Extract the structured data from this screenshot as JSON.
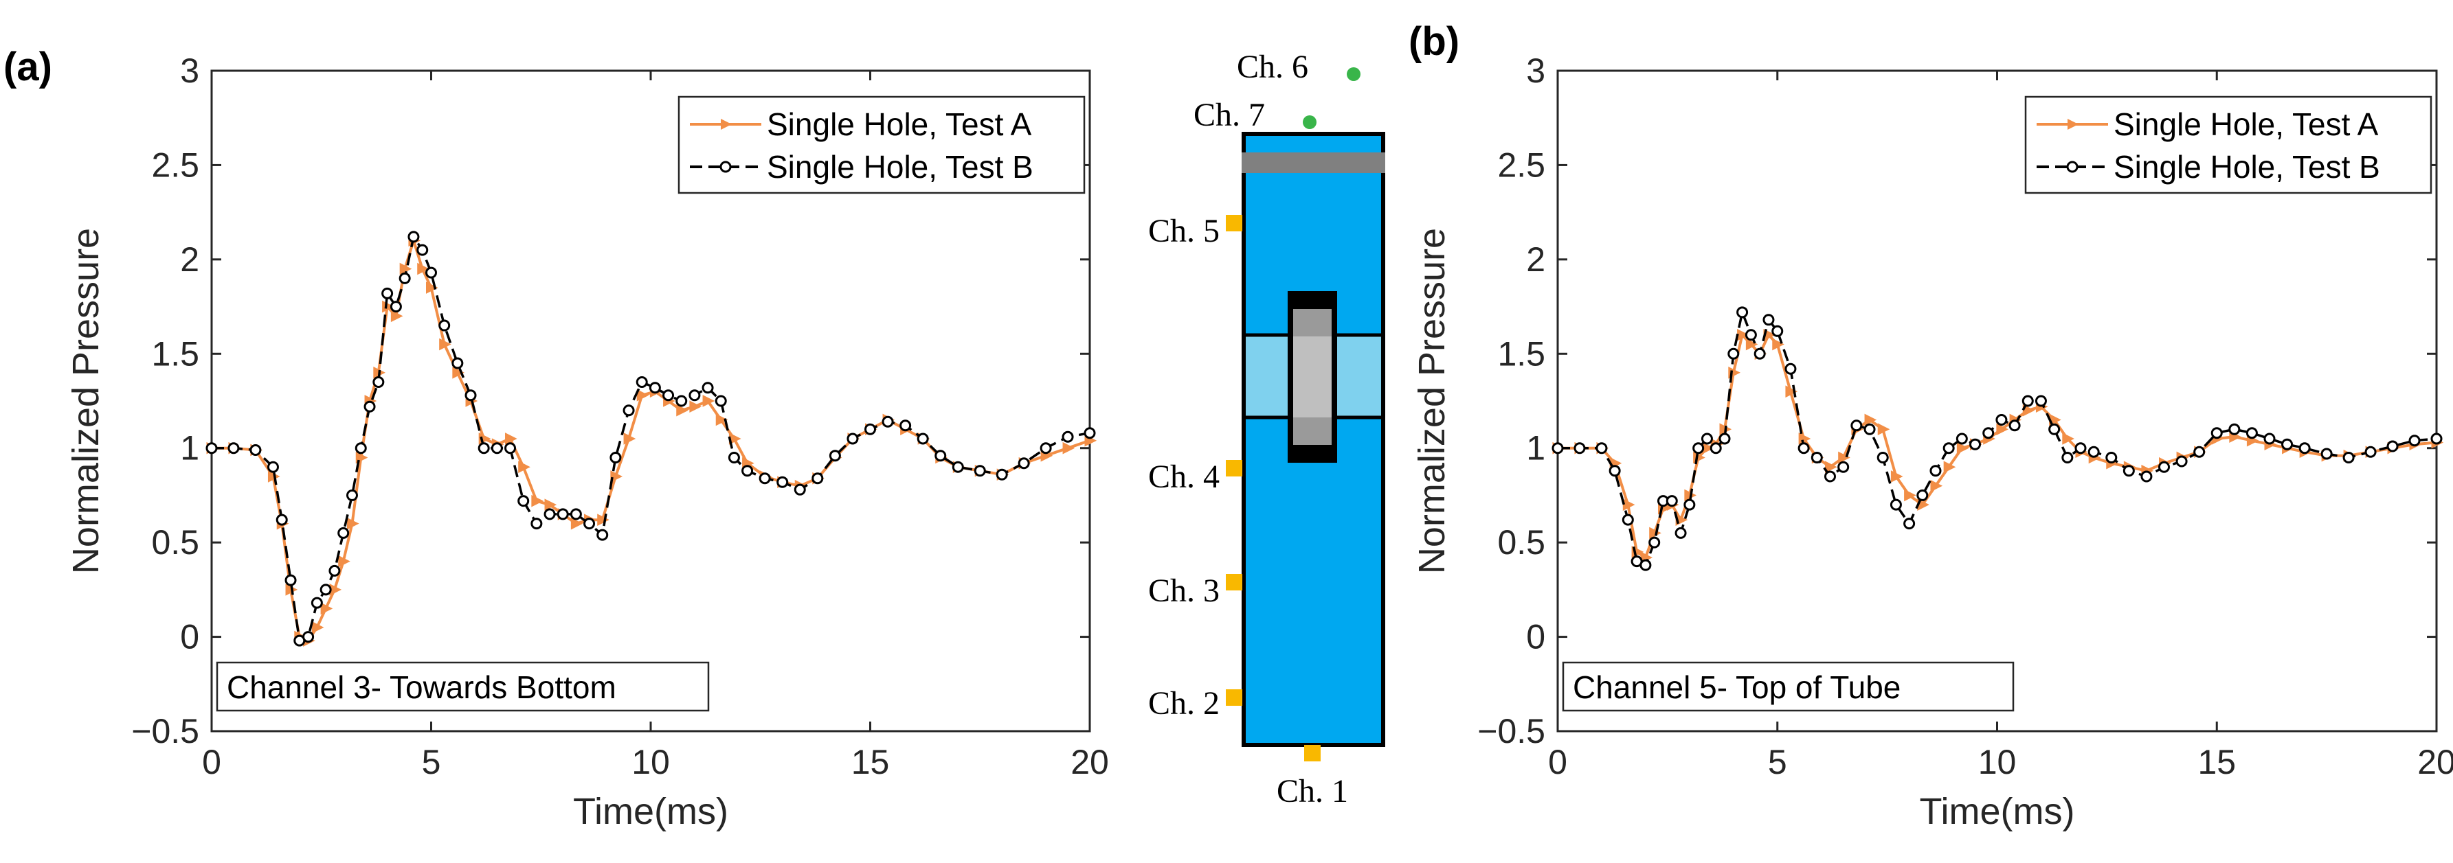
{
  "panels": {
    "a": {
      "label": "(a)"
    },
    "b": {
      "label": "(b)"
    }
  },
  "colors": {
    "test_a": "#F28E46",
    "test_b": "#000000",
    "tube_fill": "#00A8F0",
    "tube_band": "#7FD1EE",
    "sensor": "#F9B800",
    "top_sensor": "#39B54A",
    "cap": "#808080"
  },
  "chart_data": [
    {
      "type": "line",
      "panel": "a",
      "annotation": "Channel 3- Towards Bottom",
      "xlabel": "Time(ms)",
      "ylabel": "Normalized Pressure",
      "xlim": [
        0,
        20
      ],
      "ylim": [
        -0.5,
        3
      ],
      "xticks": [
        0,
        5,
        10,
        15,
        20
      ],
      "yticks": [
        -0.5,
        0,
        0.5,
        1,
        1.5,
        2,
        2.5,
        3
      ],
      "ytick_labels": [
        "−0.5",
        "0",
        "0.5",
        "1",
        "1.5",
        "2",
        "2.5",
        "3"
      ],
      "legend_position": "top-right",
      "series": [
        {
          "name": "Single Hole, Test A",
          "marker": "triangle-right",
          "line": "solid",
          "x": [
            0,
            0.5,
            1.0,
            1.4,
            1.6,
            1.8,
            2.0,
            2.2,
            2.4,
            2.6,
            2.8,
            3.0,
            3.2,
            3.4,
            3.6,
            3.8,
            4.0,
            4.2,
            4.4,
            4.6,
            4.8,
            5.0,
            5.3,
            5.6,
            5.9,
            6.2,
            6.5,
            6.8,
            7.1,
            7.4,
            7.7,
            8.0,
            8.3,
            8.6,
            8.9,
            9.2,
            9.5,
            9.8,
            10.1,
            10.4,
            10.7,
            11.0,
            11.3,
            11.6,
            11.9,
            12.2,
            12.6,
            13.0,
            13.4,
            13.8,
            14.2,
            14.6,
            15.0,
            15.4,
            15.8,
            16.2,
            16.6,
            17.0,
            17.5,
            18.0,
            18.5,
            19.0,
            19.5,
            20.0
          ],
          "y": [
            1.0,
            1.0,
            0.99,
            0.85,
            0.6,
            0.25,
            0.0,
            -0.02,
            0.05,
            0.15,
            0.25,
            0.4,
            0.6,
            0.95,
            1.25,
            1.4,
            1.75,
            1.7,
            1.95,
            2.1,
            1.95,
            1.85,
            1.55,
            1.4,
            1.25,
            1.05,
            1.02,
            1.05,
            0.9,
            0.72,
            0.7,
            0.65,
            0.6,
            0.62,
            0.62,
            0.85,
            1.05,
            1.28,
            1.3,
            1.25,
            1.2,
            1.22,
            1.25,
            1.15,
            1.05,
            0.92,
            0.85,
            0.82,
            0.8,
            0.84,
            0.95,
            1.05,
            1.1,
            1.15,
            1.1,
            1.05,
            0.95,
            0.9,
            0.88,
            0.86,
            0.92,
            0.96,
            1.0,
            1.04
          ]
        },
        {
          "name": "Single Hole, Test B",
          "marker": "circle",
          "line": "dashed",
          "x": [
            0,
            0.5,
            1.0,
            1.4,
            1.6,
            1.8,
            2.0,
            2.2,
            2.4,
            2.6,
            2.8,
            3.0,
            3.2,
            3.4,
            3.6,
            3.8,
            4.0,
            4.2,
            4.4,
            4.6,
            4.8,
            5.0,
            5.3,
            5.6,
            5.9,
            6.2,
            6.5,
            6.8,
            7.1,
            7.4,
            7.7,
            8.0,
            8.3,
            8.6,
            8.9,
            9.2,
            9.5,
            9.8,
            10.1,
            10.4,
            10.7,
            11.0,
            11.3,
            11.6,
            11.9,
            12.2,
            12.6,
            13.0,
            13.4,
            13.8,
            14.2,
            14.6,
            15.0,
            15.4,
            15.8,
            16.2,
            16.6,
            17.0,
            17.5,
            18.0,
            18.5,
            19.0,
            19.5,
            20.0
          ],
          "y": [
            1.0,
            1.0,
            0.99,
            0.9,
            0.62,
            0.3,
            -0.02,
            0.0,
            0.18,
            0.25,
            0.35,
            0.55,
            0.75,
            1.0,
            1.22,
            1.35,
            1.82,
            1.75,
            1.9,
            2.12,
            2.05,
            1.93,
            1.65,
            1.45,
            1.28,
            1.0,
            1.0,
            1.0,
            0.72,
            0.6,
            0.65,
            0.65,
            0.65,
            0.6,
            0.54,
            0.95,
            1.2,
            1.35,
            1.32,
            1.28,
            1.25,
            1.28,
            1.32,
            1.25,
            0.95,
            0.88,
            0.84,
            0.82,
            0.78,
            0.84,
            0.96,
            1.05,
            1.1,
            1.14,
            1.12,
            1.05,
            0.96,
            0.9,
            0.88,
            0.86,
            0.92,
            1.0,
            1.06,
            1.08
          ]
        }
      ]
    },
    {
      "type": "line",
      "panel": "b",
      "annotation": "Channel 5- Top of Tube",
      "xlabel": "Time(ms)",
      "ylabel": "Normalized Pressure",
      "xlim": [
        0,
        20
      ],
      "ylim": [
        -0.5,
        3
      ],
      "xticks": [
        0,
        5,
        10,
        15,
        20
      ],
      "yticks": [
        -0.5,
        0,
        0.5,
        1,
        1.5,
        2,
        2.5,
        3
      ],
      "ytick_labels": [
        "−0.5",
        "0",
        "0.5",
        "1",
        "1.5",
        "2",
        "2.5",
        "3"
      ],
      "legend_position": "top-right",
      "series": [
        {
          "name": "Single Hole, Test A",
          "marker": "triangle-right",
          "line": "solid",
          "x": [
            0,
            0.5,
            1.0,
            1.3,
            1.6,
            1.8,
            2.0,
            2.2,
            2.4,
            2.6,
            2.8,
            3.0,
            3.2,
            3.4,
            3.6,
            3.8,
            4.0,
            4.2,
            4.4,
            4.6,
            4.8,
            5.0,
            5.3,
            5.6,
            5.9,
            6.2,
            6.5,
            6.8,
            7.1,
            7.4,
            7.7,
            8.0,
            8.3,
            8.6,
            8.9,
            9.2,
            9.5,
            9.8,
            10.1,
            10.4,
            10.7,
            11.0,
            11.3,
            11.6,
            11.9,
            12.2,
            12.6,
            13.0,
            13.4,
            13.8,
            14.2,
            14.6,
            15.0,
            15.4,
            15.8,
            16.2,
            16.6,
            17.0,
            17.5,
            18.0,
            18.5,
            19.0,
            19.5,
            20.0
          ],
          "y": [
            1.0,
            1.0,
            1.0,
            0.92,
            0.7,
            0.45,
            0.42,
            0.55,
            0.68,
            0.7,
            0.62,
            0.75,
            0.95,
            1.0,
            1.02,
            1.1,
            1.4,
            1.6,
            1.55,
            1.5,
            1.6,
            1.55,
            1.3,
            1.05,
            0.95,
            0.9,
            0.95,
            1.1,
            1.15,
            1.1,
            0.85,
            0.75,
            0.7,
            0.8,
            0.9,
            1.0,
            1.02,
            1.05,
            1.1,
            1.15,
            1.2,
            1.22,
            1.15,
            1.05,
            0.98,
            0.95,
            0.92,
            0.9,
            0.88,
            0.92,
            0.95,
            0.98,
            1.05,
            1.06,
            1.04,
            1.02,
            1.0,
            0.98,
            0.96,
            0.96,
            0.98,
            1.0,
            1.02,
            1.03
          ]
        },
        {
          "name": "Single Hole, Test B",
          "marker": "circle",
          "line": "dashed",
          "x": [
            0,
            0.5,
            1.0,
            1.3,
            1.6,
            1.8,
            2.0,
            2.2,
            2.4,
            2.6,
            2.8,
            3.0,
            3.2,
            3.4,
            3.6,
            3.8,
            4.0,
            4.2,
            4.4,
            4.6,
            4.8,
            5.0,
            5.3,
            5.6,
            5.9,
            6.2,
            6.5,
            6.8,
            7.1,
            7.4,
            7.7,
            8.0,
            8.3,
            8.6,
            8.9,
            9.2,
            9.5,
            9.8,
            10.1,
            10.4,
            10.7,
            11.0,
            11.3,
            11.6,
            11.9,
            12.2,
            12.6,
            13.0,
            13.4,
            13.8,
            14.2,
            14.6,
            15.0,
            15.4,
            15.8,
            16.2,
            16.6,
            17.0,
            17.5,
            18.0,
            18.5,
            19.0,
            19.5,
            20.0
          ],
          "y": [
            1.0,
            1.0,
            1.0,
            0.88,
            0.62,
            0.4,
            0.38,
            0.5,
            0.72,
            0.72,
            0.55,
            0.7,
            1.0,
            1.05,
            1.0,
            1.05,
            1.5,
            1.72,
            1.6,
            1.5,
            1.68,
            1.62,
            1.42,
            1.0,
            0.95,
            0.85,
            0.9,
            1.12,
            1.1,
            0.95,
            0.7,
            0.6,
            0.75,
            0.88,
            1.0,
            1.05,
            1.02,
            1.08,
            1.15,
            1.12,
            1.25,
            1.25,
            1.1,
            0.95,
            1.0,
            0.98,
            0.95,
            0.88,
            0.85,
            0.9,
            0.93,
            0.98,
            1.08,
            1.1,
            1.08,
            1.05,
            1.02,
            1.0,
            0.97,
            0.95,
            0.98,
            1.01,
            1.04,
            1.05
          ]
        }
      ]
    }
  ],
  "tube_diagram": {
    "top_sensors": [
      {
        "id": "ch6",
        "label": "Ch. 6"
      },
      {
        "id": "ch7",
        "label": "Ch. 7"
      }
    ],
    "side_sensors": [
      {
        "id": "ch5",
        "label": "Ch. 5"
      },
      {
        "id": "ch4",
        "label": "Ch. 4"
      },
      {
        "id": "ch3",
        "label": "Ch. 3"
      },
      {
        "id": "ch2",
        "label": "Ch. 2"
      }
    ],
    "bottom_sensor": {
      "id": "ch1",
      "label": "Ch. 1"
    }
  }
}
